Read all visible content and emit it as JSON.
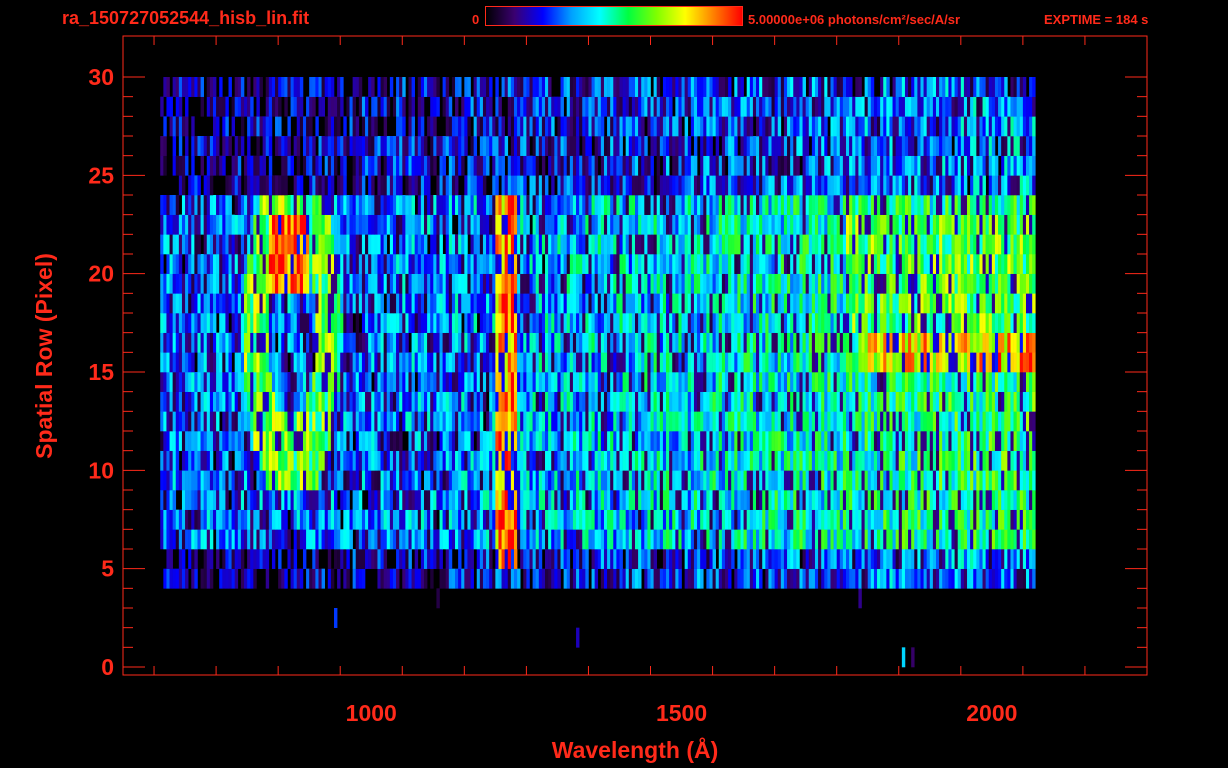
{
  "header": {
    "file_title": "ra_150727052544_hisb_lin.fit",
    "colorbar_min": "0",
    "colorbar_max_label": "5.00000e+06 photons/cm²/sec/A/sr",
    "exptime": "EXPTIME = 184 s"
  },
  "colors": {
    "axis": "#ff2a1a",
    "background": "#000000",
    "colormap": [
      "#000000",
      "#3a0070",
      "#0000ff",
      "#00a0ff",
      "#00ffff",
      "#00ff40",
      "#80ff00",
      "#ffff00",
      "#ff8000",
      "#ff0000"
    ]
  },
  "chart_data": {
    "type": "heatmap",
    "xlabel": "Wavelength (Å)",
    "ylabel": "Spatial Row (Pixel)",
    "xlim": [
      600,
      2250
    ],
    "ylim": [
      0,
      30
    ],
    "xticks": [
      1000,
      1500,
      2000
    ],
    "yticks": [
      0,
      5,
      10,
      15,
      20,
      25,
      30
    ],
    "zlim": [
      0,
      5000000
    ],
    "zunit": "photons/cm²/sec/A/sr",
    "grid": false,
    "features": [
      {
        "label": "bright vertical emission line",
        "wavelength": 1216,
        "rows": [
          5,
          23
        ],
        "level": 0.9
      },
      {
        "label": "bright band",
        "wavelength_range": [
          1780,
          2070
        ],
        "rows": [
          15,
          17
        ],
        "level": 0.8
      },
      {
        "label": "ring feature",
        "wavelength_range": [
          820,
          920
        ],
        "rows": [
          10,
          23
        ],
        "level": 0.85
      }
    ]
  }
}
